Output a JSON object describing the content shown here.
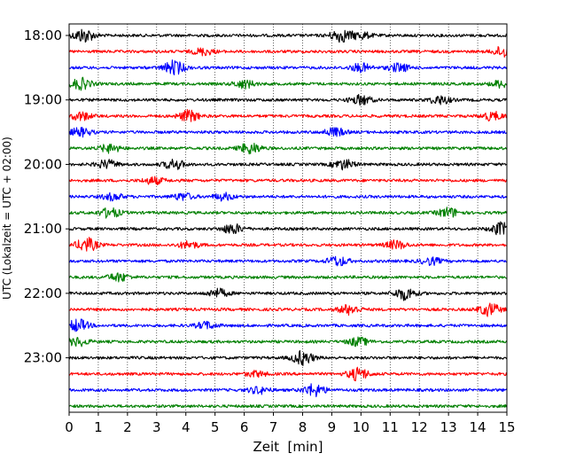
{
  "chart_data": {
    "type": "line",
    "xlabel": "Zeit  [min]",
    "ylabel": "UTC (Lokalzeit = UTC + 02:00)",
    "xlim": [
      0,
      15
    ],
    "x_ticks": [
      "0",
      "1",
      "2",
      "3",
      "4",
      "5",
      "6",
      "7",
      "8",
      "9",
      "10",
      "11",
      "12",
      "13",
      "14",
      "15"
    ],
    "y_tick_labels": [
      "18:00",
      "19:00",
      "20:00",
      "21:00",
      "22:00",
      "23:00"
    ],
    "grid": "vertical dotted",
    "trace_interval_min": 15,
    "color_cycle": [
      "#000000",
      "#ff0000",
      "#0000ff",
      "#008000"
    ],
    "traces": [
      {
        "start": "18:00",
        "color": "#000000",
        "bursts": [
          [
            0.5,
            1.0
          ],
          [
            9.3,
            0.9
          ],
          [
            10.0,
            0.5
          ]
        ]
      },
      {
        "start": "18:15",
        "color": "#ff0000",
        "bursts": [
          [
            4.6,
            0.5
          ],
          [
            14.9,
            0.8
          ]
        ]
      },
      {
        "start": "18:30",
        "color": "#0000ff",
        "bursts": [
          [
            3.6,
            1.0
          ],
          [
            10.0,
            0.6
          ],
          [
            11.3,
            0.6
          ]
        ]
      },
      {
        "start": "18:45",
        "color": "#008000",
        "bursts": [
          [
            0.4,
            0.8
          ],
          [
            6.0,
            0.6
          ],
          [
            14.8,
            0.5
          ]
        ]
      },
      {
        "start": "19:00",
        "color": "#000000",
        "bursts": [
          [
            10.0,
            0.7
          ],
          [
            12.7,
            0.6
          ]
        ]
      },
      {
        "start": "19:15",
        "color": "#ff0000",
        "bursts": [
          [
            0.4,
            0.6
          ],
          [
            4.1,
            0.8
          ],
          [
            14.5,
            0.6
          ]
        ]
      },
      {
        "start": "19:30",
        "color": "#0000ff",
        "bursts": [
          [
            0.4,
            0.6
          ],
          [
            9.1,
            0.6
          ]
        ]
      },
      {
        "start": "19:45",
        "color": "#008000",
        "bursts": [
          [
            1.4,
            0.6
          ],
          [
            6.2,
            0.8
          ]
        ]
      },
      {
        "start": "20:00",
        "color": "#000000",
        "bursts": [
          [
            1.3,
            0.6
          ],
          [
            3.6,
            0.7
          ],
          [
            9.4,
            0.7
          ]
        ]
      },
      {
        "start": "20:15",
        "color": "#ff0000",
        "bursts": [
          [
            2.9,
            0.5
          ]
        ]
      },
      {
        "start": "20:30",
        "color": "#0000ff",
        "bursts": [
          [
            1.5,
            0.5
          ],
          [
            3.9,
            0.5
          ],
          [
            5.3,
            0.5
          ]
        ]
      },
      {
        "start": "20:45",
        "color": "#008000",
        "bursts": [
          [
            1.4,
            0.7
          ],
          [
            13.0,
            0.7
          ]
        ]
      },
      {
        "start": "21:00",
        "color": "#000000",
        "bursts": [
          [
            5.6,
            0.7
          ],
          [
            14.8,
            0.9
          ]
        ]
      },
      {
        "start": "21:15",
        "color": "#ff0000",
        "bursts": [
          [
            0.6,
            1.0
          ],
          [
            4.1,
            0.5
          ],
          [
            11.2,
            0.6
          ]
        ]
      },
      {
        "start": "21:30",
        "color": "#0000ff",
        "bursts": [
          [
            9.2,
            0.7
          ],
          [
            12.4,
            0.5
          ]
        ]
      },
      {
        "start": "21:45",
        "color": "#008000",
        "bursts": [
          [
            1.7,
            0.6
          ]
        ]
      },
      {
        "start": "22:00",
        "color": "#000000",
        "bursts": [
          [
            5.1,
            0.6
          ],
          [
            11.5,
            0.9
          ]
        ]
      },
      {
        "start": "22:15",
        "color": "#ff0000",
        "bursts": [
          [
            9.6,
            0.7
          ],
          [
            14.4,
            0.9
          ]
        ]
      },
      {
        "start": "22:30",
        "color": "#0000ff",
        "bursts": [
          [
            0.3,
            0.9
          ],
          [
            4.7,
            0.5
          ]
        ]
      },
      {
        "start": "22:45",
        "color": "#008000",
        "bursts": [
          [
            0.3,
            0.6
          ],
          [
            9.9,
            0.6
          ]
        ]
      },
      {
        "start": "23:00",
        "color": "#000000",
        "bursts": [
          [
            8.0,
            1.0
          ]
        ]
      },
      {
        "start": "23:15",
        "color": "#ff0000",
        "bursts": [
          [
            9.9,
            0.9
          ],
          [
            6.4,
            0.4
          ]
        ]
      },
      {
        "start": "23:30",
        "color": "#0000ff",
        "bursts": [
          [
            8.4,
            0.9
          ],
          [
            6.5,
            0.5
          ]
        ]
      },
      {
        "start": "23:45",
        "color": "#008000",
        "bursts": []
      }
    ]
  }
}
